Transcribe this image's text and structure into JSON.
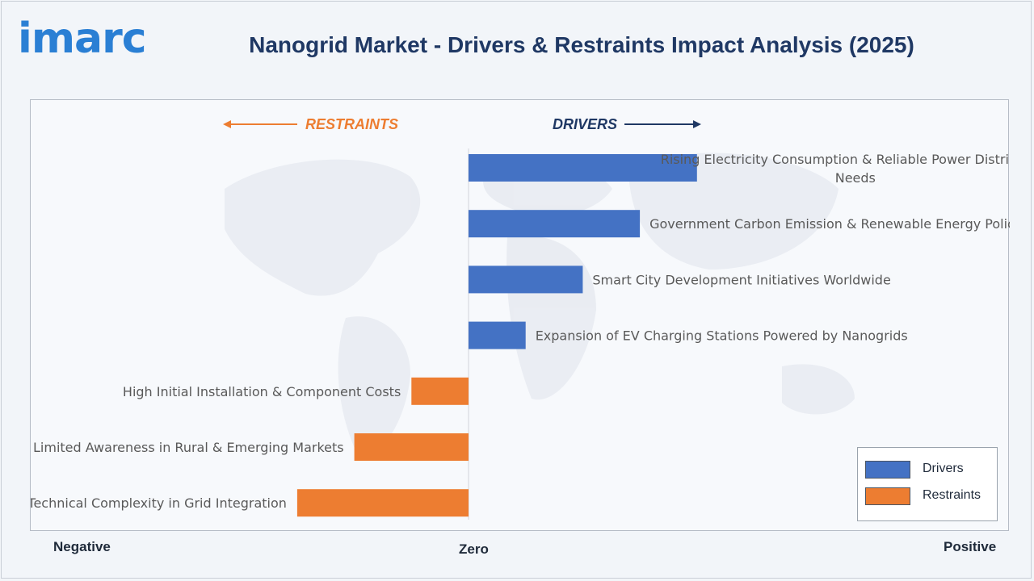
{
  "brand": {
    "logo_text": "imarc"
  },
  "title": "Nanogrid Market - Drivers & Restraints Impact Analysis (2025)",
  "colors": {
    "drivers": "#4472c4",
    "restraints": "#ed7d31",
    "title": "#1f3864",
    "logo": "#2a7fd4"
  },
  "labels": {
    "restraints": "RESTRAINTS",
    "drivers": "DRIVERS"
  },
  "axis": {
    "negative": "Negative",
    "zero": "Zero",
    "positive": "Positive"
  },
  "legend": [
    {
      "label": "Drivers",
      "color": "#4472c4"
    },
    {
      "label": "Restraints",
      "color": "#ed7d31"
    }
  ],
  "chart_data": {
    "type": "bar",
    "orientation": "horizontal",
    "title": "Nanogrid Market - Drivers & Restraints Impact Analysis (2025)",
    "xlim": [
      -3,
      4
    ],
    "categories": [
      "Rising Electricity Consumption & Reliable Power Distribution Needs",
      "Government Carbon Emission & Renewable Energy Policies",
      "Smart City Development Initiatives Worldwide",
      "Expansion of EV Charging Stations Powered by Nanogrids",
      "High Initial Installation & Component Costs",
      "Limited Awareness in Rural & Emerging Markets",
      "Technical Complexity in Grid Integration"
    ],
    "series": [
      {
        "name": "Drivers",
        "values": [
          4,
          3,
          2,
          1,
          0,
          0,
          0
        ]
      },
      {
        "name": "Restraints",
        "values": [
          0,
          0,
          0,
          0,
          -1,
          -2,
          -3
        ]
      }
    ],
    "grid": false,
    "legend_position": "bottom-right"
  }
}
